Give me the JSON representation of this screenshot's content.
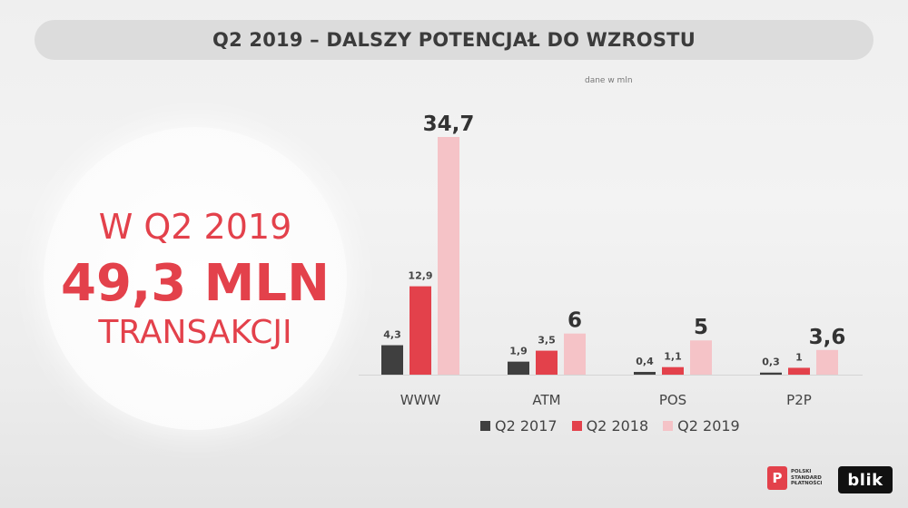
{
  "slide": {
    "title": "Q2 2019 – DALSZY POTENCJAŁ DO WZROSTU",
    "units_note": "dane w mln"
  },
  "highlight": {
    "line1": "W Q2 2019",
    "line2": "49,3 MLN",
    "line3": "TRANSAKCJI",
    "color": "#e3414b"
  },
  "chart_data": {
    "type": "bar",
    "categories": [
      "WWW",
      "ATM",
      "POS",
      "P2P"
    ],
    "series": [
      {
        "name": "Q2 2017",
        "values": [
          4.3,
          1.9,
          0.4,
          0.3
        ],
        "labels": [
          "4,3",
          "1,9",
          "0,4",
          "0,3"
        ],
        "color": "#3f3f3f"
      },
      {
        "name": "Q2 2018",
        "values": [
          12.9,
          3.5,
          1.1,
          1.0
        ],
        "labels": [
          "12,9",
          "3,5",
          "1,1",
          "1"
        ],
        "color": "#e3414b"
      },
      {
        "name": "Q2 2019",
        "values": [
          34.7,
          6.0,
          5.0,
          3.6
        ],
        "labels": [
          "34,7",
          "6",
          "5",
          "3,6"
        ],
        "color": "#f5c3c7"
      }
    ],
    "ylim": [
      0,
      34.7
    ],
    "grid": false,
    "legend_position": "bottom"
  },
  "logos": {
    "psp": {
      "mark": "P",
      "lines": [
        "POLSKI",
        "STANDARD",
        "PŁATNOŚCI"
      ]
    },
    "blik": "blik"
  }
}
